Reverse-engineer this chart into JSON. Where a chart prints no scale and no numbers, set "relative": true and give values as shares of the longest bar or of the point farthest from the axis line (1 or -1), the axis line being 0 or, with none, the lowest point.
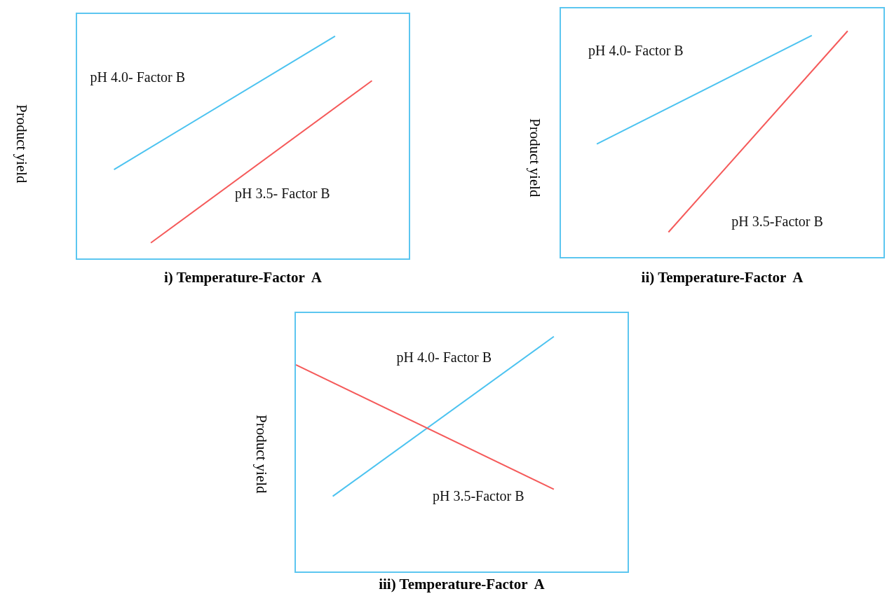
{
  "chart_data": [
    {
      "type": "line",
      "relative": true,
      "xlabel": "i) Temperature-Factor  A",
      "ylabel": "Product yield",
      "marker": "none",
      "legend": false,
      "categories": [
        null,
        null,
        null,
        null,
        null,
        null,
        null,
        null,
        null,
        null
      ],
      "series": [
        {
          "name": "pH 4.0- Factor B",
          "color": "#4cc3f0",
          "values": [
            null,
            0.4,
            null,
            null,
            null,
            null,
            null,
            1,
            null,
            null
          ]
        },
        {
          "name": "pH 3.5- Factor B",
          "color": "#f55a5a",
          "values": [
            null,
            null,
            0.07,
            null,
            null,
            null,
            null,
            null,
            0.8,
            null
          ]
        }
      ]
    },
    {
      "type": "line",
      "relative": true,
      "xlabel": "ii) Temperature-Factor  A",
      "ylabel": "Product yield",
      "marker": "none",
      "legend": false,
      "categories": [
        null,
        null,
        null,
        null,
        null,
        null,
        null,
        null,
        null,
        null
      ],
      "series": [
        {
          "name": "pH 4.0- Factor B",
          "color": "#4cc3f0",
          "values": [
            null,
            0.5,
            null,
            null,
            null,
            null,
            null,
            0.98,
            null,
            null
          ]
        },
        {
          "name": "pH 3.5-Factor B",
          "color": "#f55a5a",
          "values": [
            null,
            null,
            null,
            0.11,
            null,
            null,
            null,
            null,
            1,
            null
          ]
        }
      ]
    },
    {
      "type": "line",
      "relative": true,
      "xlabel": "iii) Temperature-Factor  A",
      "ylabel": "Product yield",
      "marker": "none",
      "legend": false,
      "categories": [
        null,
        null,
        null,
        null,
        null,
        null,
        null,
        null,
        null,
        null
      ],
      "series": [
        {
          "name": "pH 4.0- Factor B",
          "color": "#4cc3f0",
          "values": [
            null,
            0.32,
            null,
            null,
            null,
            null,
            null,
            1,
            null,
            null
          ]
        },
        {
          "name": "pH 3.5-Factor B",
          "color": "#f55a5a",
          "values": [
            0.88,
            null,
            null,
            null,
            null,
            null,
            null,
            0.35,
            null,
            null
          ]
        }
      ]
    }
  ]
}
